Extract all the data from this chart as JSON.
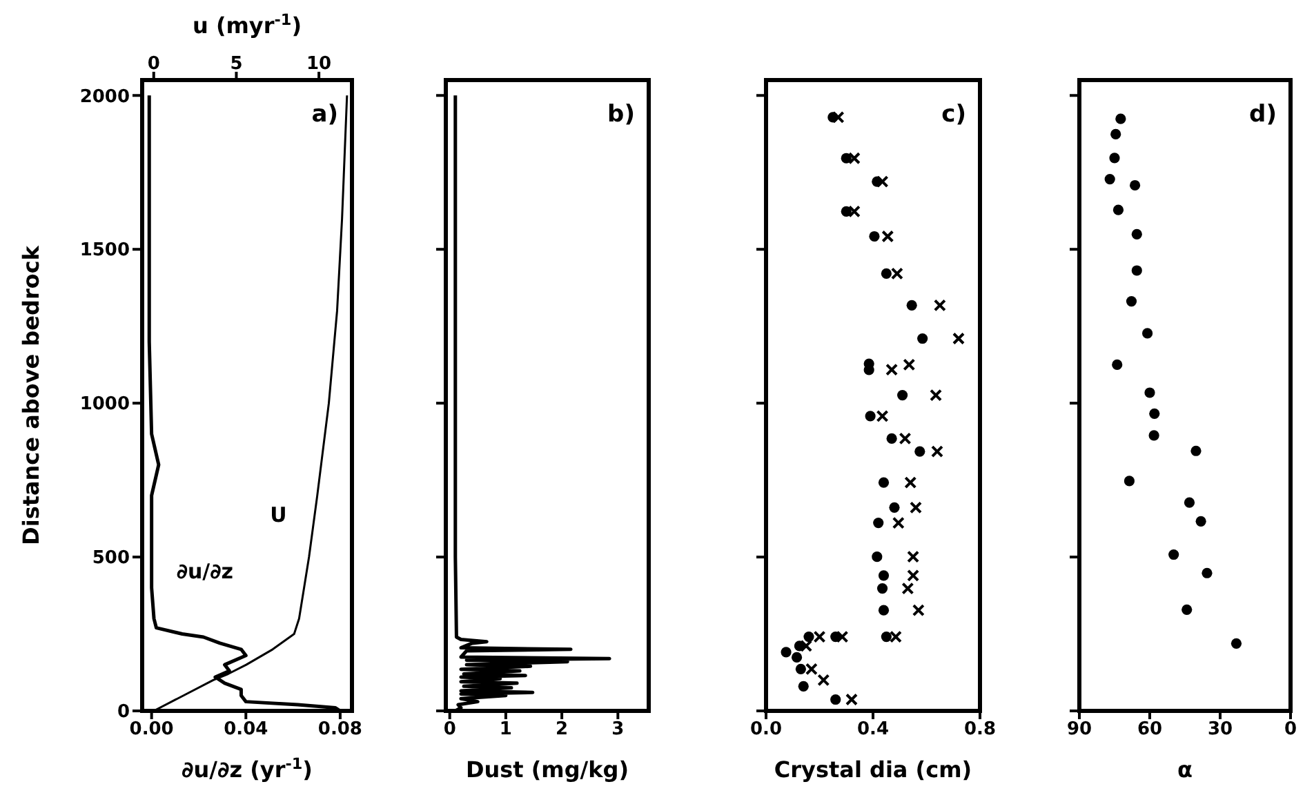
{
  "chart_data": [
    {
      "type": "line",
      "ylabel": "Distance above bedrock",
      "xlabel": "∂u/∂z (yr$^{-1}$)",
      "x2label": "u (myr$^{-1}$)",
      "annotations": [
        "a)"
      ],
      "xlim": [
        -0.004,
        0.085
      ],
      "xticks": [
        {
          "value": 0,
          "label": "0.00"
        },
        {
          "value": 0.04,
          "label": "0.04"
        },
        {
          "value": 0.08,
          "label": "0.08"
        }
      ],
      "x2lim": [
        -0.7,
        12
      ],
      "x2ticks": [
        0,
        5,
        10
      ],
      "ylim": [
        0,
        2050
      ],
      "yticks": [
        0,
        500,
        1000,
        1500,
        2000
      ],
      "series": [
        {
          "name": "U",
          "color": "#000000",
          "axis": "x2",
          "x": [
            0,
            1.8,
            3.6,
            4.5,
            5.6,
            7.2,
            8.5,
            8.8,
            9.1,
            9.4,
            9.9,
            10.6,
            11.1,
            11.4,
            11.7
          ],
          "values": [
            0,
            50,
            100,
            120,
            150,
            200,
            250,
            300,
            400,
            500,
            700,
            1000,
            1300,
            1600,
            2000
          ]
        },
        {
          "name": "∂u/∂z",
          "color": "#000000",
          "x": [
            0.08,
            0.078,
            0.062,
            0.04,
            0.038,
            0.038,
            0.031,
            0.027,
            0.033,
            0.031,
            0.04,
            0.038,
            0.029,
            0.022,
            0.013,
            0.002,
            0.001,
            0.0,
            0.0,
            0.0,
            0.0,
            0.003,
            0.0,
            -0.001,
            -0.001
          ],
          "values": [
            0,
            10,
            20,
            30,
            50,
            70,
            90,
            110,
            130,
            150,
            180,
            200,
            220,
            240,
            250,
            270,
            300,
            400,
            500,
            600,
            700,
            800,
            900,
            1200,
            2000
          ]
        }
      ]
    },
    {
      "type": "line",
      "xlabel": "Dust (mg/kg)",
      "annotations": [
        "b)"
      ],
      "xlim": [
        -0.07,
        3.55
      ],
      "xticks": [
        0,
        1,
        2,
        3
      ],
      "ylim": [
        0,
        2050
      ],
      "yticks": [
        {
          "value": 0,
          "label": null
        },
        {
          "value": 500,
          "label": null
        },
        {
          "value": 1000,
          "label": null
        },
        {
          "value": 1500,
          "label": null
        },
        {
          "value": 2000,
          "label": null
        }
      ],
      "tick_labels": "x",
      "series": [
        {
          "color": "#000000",
          "x": [
            0.1,
            0.2,
            0.15,
            0.5,
            0.2,
            1.0,
            0.2,
            1.48,
            0.2,
            1.1,
            0.25,
            1.2,
            0.2,
            0.9,
            0.2,
            1.35,
            0.25,
            1.25,
            0.2,
            1.44,
            0.3,
            2.1,
            0.3,
            2.85,
            0.2,
            0.25,
            0.3,
            2.16,
            0.2,
            0.4,
            0.66,
            0.2,
            0.12,
            0.1,
            0.1,
            0.1,
            0.1
          ],
          "values": [
            0,
            10,
            20,
            30,
            40,
            50,
            55,
            60,
            65,
            75,
            80,
            90,
            95,
            105,
            110,
            115,
            120,
            130,
            135,
            145,
            150,
            160,
            165,
            170,
            175,
            185,
            195,
            200,
            205,
            220,
            225,
            232,
            240,
            500,
            1000,
            1500,
            2000
          ]
        }
      ]
    },
    {
      "type": "scatter",
      "xlabel": "Crystal dia (cm)",
      "annotations": [
        "c)"
      ],
      "xlim": [
        0,
        0.8
      ],
      "xticks": [
        {
          "value": 0,
          "label": "0.0"
        },
        {
          "value": 0.4,
          "label": "0.4"
        },
        {
          "value": 0.8,
          "label": "0.8"
        }
      ],
      "ylim": [
        0,
        2050
      ],
      "yticks": [
        {
          "value": 0,
          "label": null
        },
        {
          "value": 500,
          "label": null
        },
        {
          "value": 1000,
          "label": null
        },
        {
          "value": 1500,
          "label": null
        },
        {
          "value": 2000,
          "label": null
        }
      ],
      "tick_labels": "x",
      "series": [
        {
          "color": "#000000",
          "marker": "circle",
          "x": [
            0.25,
            0.3,
            0.415,
            0.3,
            0.405,
            0.45,
            0.545,
            0.585,
            0.385,
            0.385,
            0.51,
            0.39,
            0.47,
            0.575,
            0.44,
            0.48,
            0.42,
            0.415,
            0.44,
            0.435,
            0.44,
            0.45,
            0.26,
            0.16,
            0.125,
            0.075,
            0.115,
            0.13,
            0.14,
            0.26
          ],
          "values": [
            1929,
            1796,
            1720,
            1623,
            1542,
            1421,
            1318,
            1210,
            1128,
            1108,
            1026,
            958,
            885,
            843,
            742,
            661,
            611,
            501,
            440,
            398,
            327,
            241,
            241,
            241,
            211,
            191,
            174,
            136,
            80,
            37
          ]
        },
        {
          "color": "#000000",
          "marker": "cross",
          "x": [
            0.27,
            0.33,
            0.435,
            0.33,
            0.455,
            0.49,
            0.65,
            0.72,
            0.535,
            0.47,
            0.635,
            0.435,
            0.52,
            0.64,
            0.54,
            0.56,
            0.495,
            0.55,
            0.55,
            0.53,
            0.57,
            0.485,
            0.285,
            0.2,
            0.15,
            0.17,
            0.215,
            0.32
          ],
          "values": [
            1929,
            1796,
            1720,
            1623,
            1542,
            1421,
            1318,
            1210,
            1125,
            1109,
            1026,
            958,
            885,
            843,
            742,
            661,
            611,
            501,
            440,
            398,
            327,
            241,
            241,
            241,
            211,
            136,
            100,
            37
          ]
        }
      ]
    },
    {
      "type": "scatter",
      "xlabel": "α",
      "annotations": [
        "d)"
      ],
      "marker": "circle",
      "xlim": [
        90,
        0
      ],
      "xticks": [
        90,
        60,
        30,
        0
      ],
      "ylim": [
        0,
        2050
      ],
      "yticks": [
        {
          "value": 0,
          "label": null
        },
        {
          "value": 500,
          "label": null
        },
        {
          "value": 1000,
          "label": null
        },
        {
          "value": 1500,
          "label": null
        },
        {
          "value": 2000,
          "label": null
        }
      ],
      "tick_labels": "x",
      "series": [
        {
          "color": "#000000",
          "x": [
            72.4,
            74.5,
            75,
            77,
            66.3,
            73.4,
            65.5,
            65.5,
            67.8,
            61,
            73.9,
            60,
            58,
            58.2,
            40.3,
            68.7,
            43.1,
            38.2,
            49.8,
            35.6,
            44.2,
            23.1
          ],
          "values": [
            1924,
            1874,
            1797,
            1728,
            1708,
            1628,
            1549,
            1431,
            1331,
            1227,
            1125,
            1034,
            966,
            895,
            845,
            747,
            677,
            616,
            508,
            448,
            329,
            219
          ]
        }
      ]
    }
  ]
}
